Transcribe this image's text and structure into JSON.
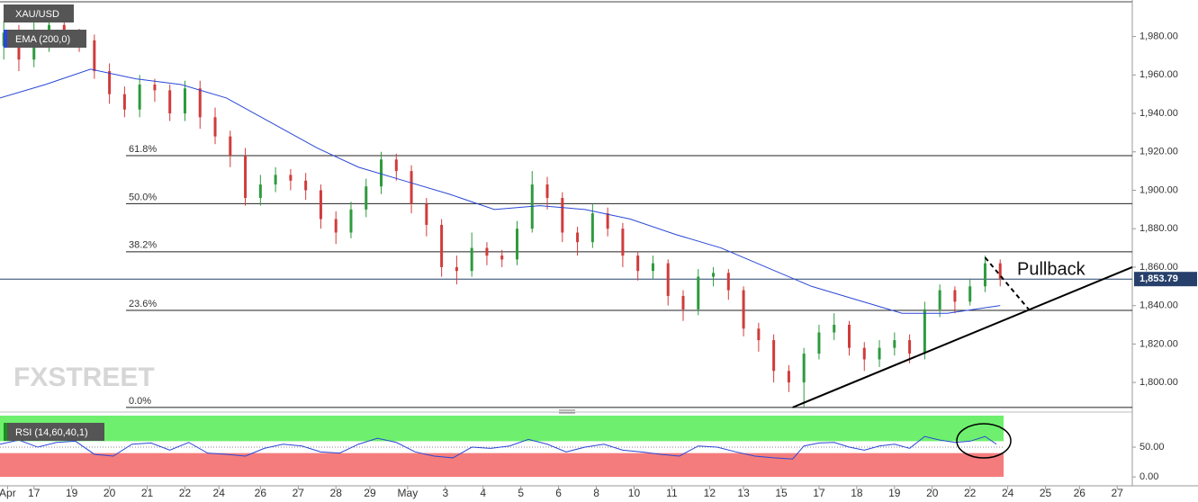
{
  "chart_data": [
    {
      "type": "candlestick",
      "title": "XAU/USD",
      "watermark": "FXSTREET",
      "annotation": "Pullback",
      "xlim": [
        0,
        300
      ],
      "ylim": [
        1786,
        1999
      ],
      "yticks": [
        {
          "value": 1800,
          "label": "1,800.00"
        },
        {
          "value": 1820,
          "label": "1,820.00"
        },
        {
          "value": 1840,
          "label": "1,840.00"
        },
        {
          "value": 1860,
          "label": "1,860.00"
        },
        {
          "value": 1880,
          "label": "1,880.00"
        },
        {
          "value": 1900,
          "label": "1,900.00"
        },
        {
          "value": 1920,
          "label": "1,920.00"
        },
        {
          "value": 1940,
          "label": "1,940.00"
        },
        {
          "value": 1960,
          "label": "1,960.00"
        },
        {
          "value": 1980,
          "label": "1,980.00"
        }
      ],
      "up_color": "#2e9a3e",
      "down_color": "#d13b3b",
      "x": [
        1,
        5,
        9,
        13,
        17,
        21,
        25,
        29,
        33,
        37,
        41,
        45,
        49,
        53,
        57,
        61,
        65,
        69,
        73,
        77,
        81,
        85,
        89,
        93,
        97,
        101,
        105,
        109,
        113,
        117,
        121,
        125,
        129,
        133,
        137,
        141,
        145,
        149,
        153,
        157,
        161,
        165,
        169,
        173,
        177,
        181,
        185,
        189,
        193,
        197,
        201,
        205,
        209,
        213,
        217,
        221,
        225,
        229,
        233,
        237,
        241,
        245,
        249,
        253,
        257,
        261,
        265
      ],
      "open": [
        1975,
        1982,
        1968,
        1975,
        1986,
        1980,
        1978,
        1962,
        1950,
        1942,
        1955,
        1952,
        1940,
        1953,
        1938,
        1928,
        1918,
        1896,
        1903,
        1908,
        1905,
        1900,
        1885,
        1878,
        1890,
        1902,
        1916,
        1910,
        1893,
        1882,
        1860,
        1858,
        1870,
        1866,
        1864,
        1880,
        1903,
        1896,
        1878,
        1873,
        1888,
        1880,
        1866,
        1858,
        1862,
        1845,
        1838,
        1855,
        1857,
        1848,
        1828,
        1822,
        1806,
        1800,
        1815,
        1826,
        1830,
        1818,
        1812,
        1818,
        1822,
        1815,
        1838,
        1848,
        1842,
        1850,
        1862
      ],
      "high": [
        1988,
        1986,
        1996,
        1990,
        1990,
        1984,
        1981,
        1966,
        1954,
        1960,
        1958,
        1955,
        1957,
        1957,
        1943,
        1931,
        1922,
        1908,
        1912,
        1911,
        1909,
        1903,
        1889,
        1894,
        1906,
        1920,
        1919,
        1913,
        1896,
        1885,
        1866,
        1878,
        1873,
        1869,
        1884,
        1910,
        1907,
        1899,
        1881,
        1893,
        1891,
        1883,
        1868,
        1866,
        1864,
        1848,
        1859,
        1860,
        1859,
        1850,
        1831,
        1825,
        1809,
        1818,
        1830,
        1836,
        1832,
        1821,
        1822,
        1826,
        1825,
        1842,
        1851,
        1850,
        1854,
        1866,
        1864
      ],
      "low": [
        1968,
        1962,
        1964,
        1972,
        1976,
        1972,
        1958,
        1945,
        1938,
        1938,
        1946,
        1936,
        1936,
        1932,
        1924,
        1912,
        1892,
        1892,
        1899,
        1900,
        1895,
        1880,
        1872,
        1875,
        1886,
        1898,
        1905,
        1888,
        1876,
        1855,
        1851,
        1855,
        1861,
        1860,
        1861,
        1878,
        1890,
        1873,
        1866,
        1870,
        1876,
        1860,
        1853,
        1854,
        1840,
        1832,
        1835,
        1850,
        1843,
        1824,
        1816,
        1800,
        1795,
        1787,
        1812,
        1822,
        1814,
        1806,
        1808,
        1814,
        1810,
        1812,
        1834,
        1836,
        1840,
        1847,
        1850
      ],
      "close": [
        1982,
        1968,
        1975,
        1986,
        1980,
        1978,
        1962,
        1950,
        1942,
        1955,
        1952,
        1940,
        1953,
        1938,
        1928,
        1918,
        1896,
        1903,
        1908,
        1905,
        1900,
        1885,
        1878,
        1890,
        1902,
        1916,
        1910,
        1893,
        1882,
        1860,
        1858,
        1870,
        1866,
        1864,
        1880,
        1903,
        1896,
        1878,
        1873,
        1888,
        1880,
        1866,
        1858,
        1862,
        1845,
        1838,
        1855,
        1857,
        1848,
        1828,
        1822,
        1806,
        1800,
        1815,
        1826,
        1830,
        1818,
        1812,
        1818,
        1822,
        1815,
        1838,
        1848,
        1842,
        1850,
        1862,
        1854
      ],
      "series": [
        {
          "name": "EMA (200,0)",
          "color": "#2a47d6",
          "x": [
            0,
            12,
            24,
            36,
            48,
            60,
            72,
            84,
            95,
            107,
            119,
            131,
            143,
            155,
            167,
            179,
            191,
            203,
            215,
            227,
            239,
            251,
            265
          ],
          "values": [
            1948,
            1955,
            1963,
            1958,
            1955,
            1948,
            1935,
            1922,
            1912,
            1905,
            1898,
            1890,
            1892,
            1890,
            1885,
            1877,
            1870,
            1860,
            1850,
            1843,
            1836,
            1836,
            1840
          ]
        }
      ],
      "fib_levels": [
        {
          "label": "61.8%",
          "value": 1918
        },
        {
          "label": "50.0%",
          "value": 1893
        },
        {
          "label": "38.2%",
          "value": 1868
        },
        {
          "label": "23.6%",
          "value": 1837.5
        },
        {
          "label": "0.0%",
          "value": 1787
        }
      ],
      "last_price": {
        "value": 1853.79,
        "label": "1,853.79"
      },
      "trendline": {
        "x": [
          210,
          300
        ],
        "y": [
          1787,
          1860
        ]
      },
      "pullback": {
        "x": [
          261,
          273
        ],
        "y": [
          1865,
          1837
        ]
      }
    },
    {
      "type": "line",
      "xlim": [
        0,
        300
      ],
      "ylim": [
        -15,
        103
      ],
      "overbought": 60,
      "oversold": 40,
      "yticks": [
        {
          "value": 0,
          "label": "0.00"
        },
        {
          "value": 50,
          "label": "50.00"
        }
      ],
      "xticks": [
        {
          "value": 2,
          "label": "Apr"
        },
        {
          "value": 9,
          "label": "17"
        },
        {
          "value": 19,
          "label": "19"
        },
        {
          "value": 29,
          "label": "20"
        },
        {
          "value": 39,
          "label": "21"
        },
        {
          "value": 49,
          "label": "22"
        },
        {
          "value": 58,
          "label": "24"
        },
        {
          "value": 69,
          "label": "26"
        },
        {
          "value": 79,
          "label": "27"
        },
        {
          "value": 89,
          "label": "28"
        },
        {
          "value": 98,
          "label": "29"
        },
        {
          "value": 108,
          "label": "May"
        },
        {
          "value": 118,
          "label": "3"
        },
        {
          "value": 128,
          "label": "4"
        },
        {
          "value": 138,
          "label": "5"
        },
        {
          "value": 148,
          "label": "6"
        },
        {
          "value": 158,
          "label": "8"
        },
        {
          "value": 168,
          "label": "10"
        },
        {
          "value": 178,
          "label": "11"
        },
        {
          "value": 188,
          "label": "12"
        },
        {
          "value": 197,
          "label": "13"
        },
        {
          "value": 207,
          "label": "15"
        },
        {
          "value": 217,
          "label": "17"
        },
        {
          "value": 227,
          "label": "18"
        },
        {
          "value": 237,
          "label": "19"
        },
        {
          "value": 247,
          "label": "20"
        },
        {
          "value": 257,
          "label": "22"
        },
        {
          "value": 267,
          "label": "24"
        },
        {
          "value": 277,
          "label": "25"
        },
        {
          "value": 286,
          "label": "26"
        },
        {
          "value": 296,
          "label": "27"
        }
      ],
      "series": [
        {
          "name": "RSI (14,60,40,1)",
          "color": "#2a47d6",
          "x": [
            0,
            5,
            10,
            15,
            20,
            25,
            30,
            35,
            40,
            45,
            50,
            55,
            60,
            65,
            70,
            75,
            80,
            85,
            90,
            95,
            100,
            105,
            110,
            115,
            120,
            125,
            130,
            135,
            140,
            145,
            150,
            155,
            160,
            165,
            170,
            175,
            180,
            185,
            190,
            195,
            200,
            205,
            210,
            213,
            217,
            221,
            225,
            229,
            233,
            237,
            241,
            245,
            249,
            253,
            257,
            261,
            264
          ],
          "values": [
            55,
            62,
            50,
            58,
            60,
            38,
            35,
            55,
            57,
            45,
            58,
            40,
            38,
            35,
            48,
            55,
            52,
            42,
            40,
            55,
            65,
            58,
            42,
            35,
            32,
            50,
            48,
            52,
            63,
            55,
            42,
            50,
            55,
            45,
            42,
            38,
            35,
            52,
            50,
            42,
            35,
            32,
            30,
            52,
            57,
            58,
            50,
            45,
            52,
            55,
            48,
            68,
            62,
            58,
            60,
            68,
            55
          ]
        }
      ]
    }
  ]
}
